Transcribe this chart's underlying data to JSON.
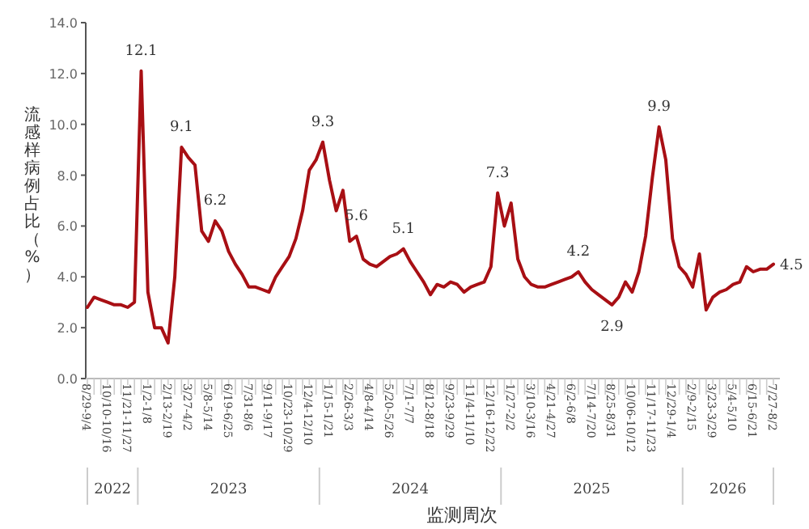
{
  "chart_data": {
    "type": "line",
    "xlabel": "监测周次",
    "ylabel": "流感样病例占比（%）",
    "categories": [
      "8/29-9/4",
      null,
      null,
      "10/10-10/16",
      null,
      null,
      "11/21-11/27",
      null,
      null,
      "1/2-1/8",
      null,
      null,
      "2/13-2/19",
      null,
      null,
      "3/27-4/2",
      null,
      null,
      "5/8-5/14",
      null,
      null,
      "6/19-6/25",
      null,
      null,
      "7/31-8/6",
      null,
      null,
      "9/11-9/17",
      null,
      null,
      "10/23-10/29",
      null,
      null,
      "12/4-12/10",
      null,
      null,
      "1/15-1/21",
      null,
      null,
      "2/26-3/3",
      null,
      null,
      "4/8-4/14",
      null,
      null,
      "5/20-5/26",
      null,
      null,
      "7/1-7/7",
      null,
      null,
      "8/12-8/18",
      null,
      null,
      "9/23-9/29",
      null,
      null,
      "11/4-11/10",
      null,
      null,
      "12/16-12/22",
      null,
      null,
      "1/27-2/2",
      null,
      null,
      "3/10-3/16",
      null,
      null,
      "4/21-4/27",
      null,
      null,
      "6/2-6/8",
      null,
      null,
      "7/14-7/20",
      null,
      null,
      "8/25-8/31",
      null,
      null,
      "10/06-10/12",
      null,
      null,
      "11/17-11/23",
      null,
      null,
      "12/29-1/4",
      null,
      null,
      "2/9-2/15",
      null,
      null,
      "3/23-3/29",
      null,
      null,
      "5/4-5/10",
      null,
      null,
      "6/15-6/21",
      null,
      null,
      "7/27-8/2"
    ],
    "series": [
      {
        "color": "#a80f14",
        "values": [
          2.8,
          3.2,
          3.1,
          3.0,
          2.9,
          2.9,
          2.8,
          3.0,
          12.1,
          3.4,
          2.0,
          2.0,
          1.4,
          4.0,
          9.1,
          8.7,
          8.4,
          5.8,
          5.4,
          6.2,
          5.8,
          5.0,
          4.5,
          4.1,
          3.6,
          3.6,
          3.5,
          3.4,
          4.0,
          4.4,
          4.8,
          5.5,
          6.6,
          8.2,
          8.6,
          9.3,
          7.8,
          6.6,
          7.4,
          5.4,
          5.6,
          4.7,
          4.5,
          4.4,
          4.6,
          4.8,
          4.9,
          5.1,
          4.6,
          4.2,
          3.8,
          3.3,
          3.7,
          3.6,
          3.8,
          3.7,
          3.4,
          3.6,
          3.7,
          3.8,
          4.4,
          7.3,
          6.0,
          6.9,
          4.7,
          4.0,
          3.7,
          3.6,
          3.6,
          3.7,
          3.8,
          3.9,
          4.0,
          4.2,
          3.8,
          3.5,
          3.3,
          3.1,
          2.9,
          3.2,
          3.8,
          3.4,
          4.2,
          5.6,
          7.9,
          9.9,
          8.6,
          5.5,
          4.4,
          4.1,
          3.6,
          4.9,
          2.7,
          3.2,
          3.4,
          3.5,
          3.7,
          3.8,
          4.4,
          4.2,
          4.3,
          4.3,
          4.5
        ],
        "value_labels": [
          null,
          null,
          null,
          null,
          null,
          null,
          null,
          null,
          "12.1",
          null,
          null,
          null,
          null,
          null,
          "9.1",
          null,
          null,
          null,
          null,
          "6.2",
          null,
          null,
          null,
          null,
          null,
          null,
          null,
          null,
          null,
          null,
          null,
          null,
          null,
          null,
          null,
          "9.3",
          null,
          null,
          null,
          null,
          "5.6",
          null,
          null,
          null,
          null,
          null,
          null,
          "5.1",
          null,
          null,
          null,
          null,
          null,
          null,
          null,
          null,
          null,
          null,
          null,
          null,
          null,
          "7.3",
          null,
          null,
          null,
          null,
          null,
          null,
          null,
          null,
          null,
          null,
          null,
          "4.2",
          null,
          null,
          null,
          null,
          "2.9",
          null,
          null,
          null,
          null,
          null,
          null,
          "9.9",
          null,
          null,
          null,
          null,
          null,
          null,
          null,
          null,
          null,
          null,
          null,
          null,
          null,
          null,
          null,
          null,
          "4.5"
        ]
      }
    ],
    "ylim": [
      0,
      14
    ],
    "yticks": [
      {
        "value": 0,
        "label": "0.0"
      },
      {
        "value": 2,
        "label": "2.0"
      },
      {
        "value": 4,
        "label": "4.0"
      },
      {
        "value": 6,
        "label": "6.0"
      },
      {
        "value": 8,
        "label": "8.0"
      },
      {
        "value": 10,
        "label": "10.0"
      },
      {
        "value": 12,
        "label": "12.0"
      },
      {
        "value": 14,
        "label": "14.0"
      }
    ],
    "annotations": [
      "2022",
      "2023",
      "2024",
      "2025",
      "2026"
    ],
    "grid": false,
    "marker": "none",
    "line_style": "solid"
  }
}
